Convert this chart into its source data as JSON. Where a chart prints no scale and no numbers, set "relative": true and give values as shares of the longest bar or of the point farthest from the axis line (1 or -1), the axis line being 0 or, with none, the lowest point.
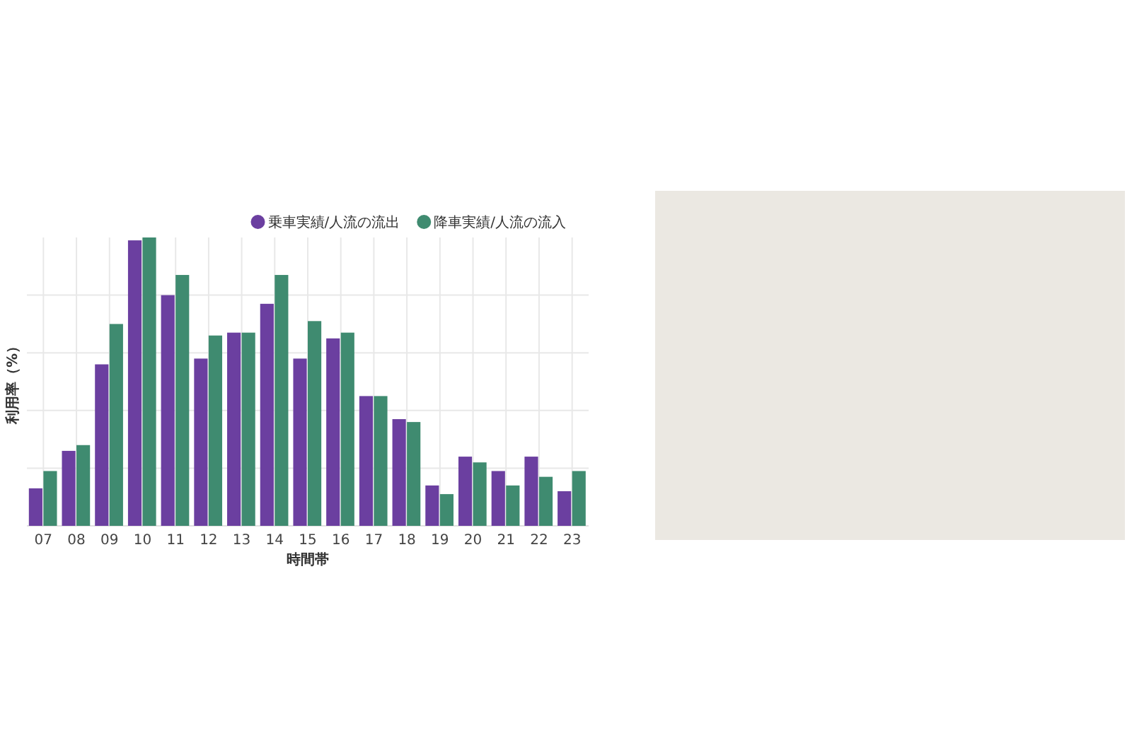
{
  "chart_data": {
    "type": "bar",
    "relative": true,
    "xlabel": "時間帯",
    "ylabel": "利用率（%）",
    "categories": [
      "07",
      "08",
      "09",
      "10",
      "11",
      "12",
      "13",
      "14",
      "15",
      "16",
      "17",
      "18",
      "19",
      "20",
      "21",
      "22",
      "23"
    ],
    "series": [
      {
        "name": "乗車実績/人流の流出",
        "color": "#6b3fa0",
        "values": [
          0.13,
          0.26,
          0.56,
          0.99,
          0.8,
          0.58,
          0.67,
          0.77,
          0.58,
          0.65,
          0.45,
          0.37,
          0.14,
          0.24,
          0.19,
          0.24,
          0.12
        ]
      },
      {
        "name": "降車実績/人流の流入",
        "color": "#3f8b70",
        "values": [
          0.19,
          0.28,
          0.7,
          1,
          0.87,
          0.66,
          0.67,
          0.87,
          0.71,
          0.67,
          0.45,
          0.36,
          0.11,
          0.22,
          0.14,
          0.17,
          0.19
        ]
      }
    ],
    "grid": true,
    "legend": "top right"
  }
}
